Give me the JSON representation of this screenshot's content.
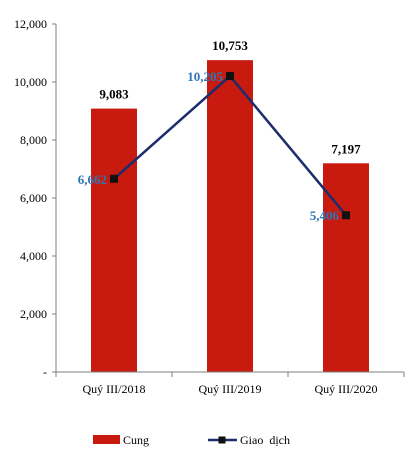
{
  "chart_data": {
    "type": "bar",
    "categories": [
      "Quý III/2018",
      "Quý III/2019",
      "Quý III/2020"
    ],
    "series": [
      {
        "name": "Cung",
        "kind": "bar",
        "color": "#c81a0e",
        "values": [
          9083,
          10753,
          7197
        ],
        "labels": [
          "9,083",
          "10,753",
          "7,197"
        ]
      },
      {
        "name": "Giao  dịch",
        "kind": "line",
        "color": "#1c2c6c",
        "values": [
          6662,
          10205,
          5406
        ],
        "labels": [
          "6,662",
          "10,205",
          "5,406"
        ]
      }
    ],
    "ylim": [
      0,
      12000
    ],
    "yticks": [
      {
        "value": 0,
        "label": "-"
      },
      {
        "value": 2000,
        "label": "2,000"
      },
      {
        "value": 4000,
        "label": "4,000"
      },
      {
        "value": 6000,
        "label": "6,000"
      },
      {
        "value": 8000,
        "label": "8,000"
      },
      {
        "value": 10000,
        "label": "10,000"
      },
      {
        "value": 12000,
        "label": "12,000"
      }
    ],
    "title": "",
    "xlabel": "",
    "ylabel": "",
    "grid": false,
    "legend_position": "bottom",
    "line_label_color": "#2e75b6"
  }
}
